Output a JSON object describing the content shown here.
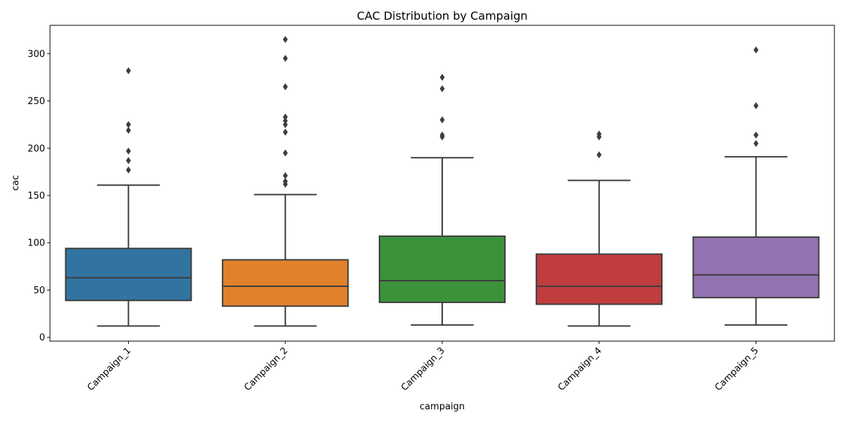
{
  "chart_data": {
    "type": "box",
    "title": "CAC Distribution by Campaign",
    "xlabel": "campaign",
    "ylabel": "cac",
    "ylim": [
      -4,
      330
    ],
    "yticks": [
      0,
      50,
      100,
      150,
      200,
      250,
      300
    ],
    "grid": false,
    "categories": [
      "Campaign_1",
      "Campaign_2",
      "Campaign_3",
      "Campaign_4",
      "Campaign_5"
    ],
    "colors": [
      "#3274a1",
      "#e1812c",
      "#3a923a",
      "#c03d3e",
      "#9372b2"
    ],
    "boxes": [
      {
        "category": "Campaign_1",
        "whisker_low": 12,
        "q1": 39,
        "median": 63,
        "q3": 94,
        "whisker_high": 161,
        "outliers": [
          177,
          187,
          197,
          219,
          225,
          282
        ]
      },
      {
        "category": "Campaign_2",
        "whisker_low": 12,
        "q1": 33,
        "median": 54,
        "q3": 82,
        "whisker_high": 151,
        "outliers": [
          162,
          165,
          171,
          195,
          217,
          225,
          229,
          233,
          265,
          295,
          315
        ]
      },
      {
        "category": "Campaign_3",
        "whisker_low": 13,
        "q1": 37,
        "median": 60,
        "q3": 107,
        "whisker_high": 190,
        "outliers": [
          212,
          214,
          230,
          263,
          275
        ]
      },
      {
        "category": "Campaign_4",
        "whisker_low": 12,
        "q1": 35,
        "median": 54,
        "q3": 88,
        "whisker_high": 166,
        "outliers": [
          193,
          212,
          215
        ]
      },
      {
        "category": "Campaign_5",
        "whisker_low": 13,
        "q1": 42,
        "median": 66,
        "q3": 106,
        "whisker_high": 191,
        "outliers": [
          205,
          214,
          245,
          304
        ]
      }
    ]
  }
}
